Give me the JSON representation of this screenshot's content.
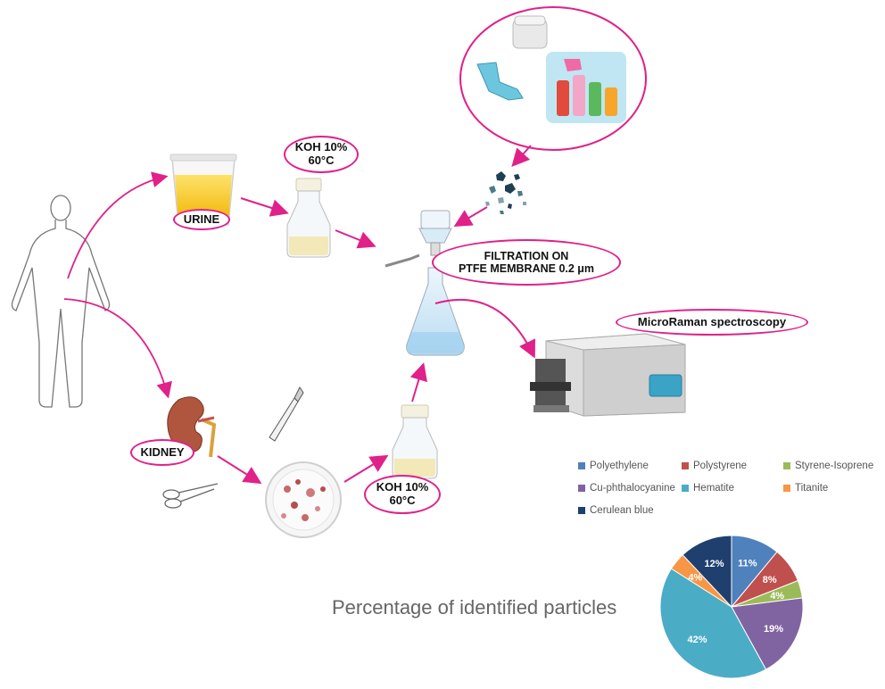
{
  "labels": {
    "urine": "URINE",
    "koh_top": "KOH 10%\n60°C",
    "koh_bottom": "KOH 10%\n60°C",
    "filtration": "FILTRATION ON\nPTFE MEMBRANE 0.2 μm",
    "microraman": "MicroRaman spectroscopy",
    "kidney": "KIDNEY"
  },
  "chart_data": {
    "type": "pie",
    "title": "Percentage of identified particles",
    "legend_position": "above",
    "slices": [
      {
        "label": "Polyethylene",
        "value": 11,
        "text": "11%",
        "color": "#4f81bd"
      },
      {
        "label": "Polystyrene",
        "value": 8,
        "text": "8%",
        "color": "#c0504d"
      },
      {
        "label": "Styrene-Isoprene",
        "value": 4,
        "text": "4%",
        "color": "#9bbb59"
      },
      {
        "label": "Cu-phthalocyanine",
        "value": 19,
        "text": "19%",
        "color": "#8064a2"
      },
      {
        "label": "Hematite",
        "value": 42,
        "text": "42%",
        "color": "#4bacc6"
      },
      {
        "label": "Titanite",
        "value": 4,
        "text": "4%",
        "color": "#f79646"
      },
      {
        "label": "Cerulean blue",
        "value": 12,
        "text": "12%",
        "color": "#1f3f6e"
      }
    ]
  },
  "colors": {
    "accent": "#e0218a",
    "urine": "#f6c21b",
    "flask_liquid": "#cfe6f5"
  },
  "icons": [
    "human-outline-icon",
    "urine-cup-icon",
    "reagent-bottle-icon",
    "kidney-icon",
    "scalpel-icon",
    "scissors-icon",
    "petri-dish-icon",
    "filtration-flask-icon",
    "microplastic-particles-icon",
    "plastic-products-icon",
    "raman-spectrometer-icon"
  ]
}
